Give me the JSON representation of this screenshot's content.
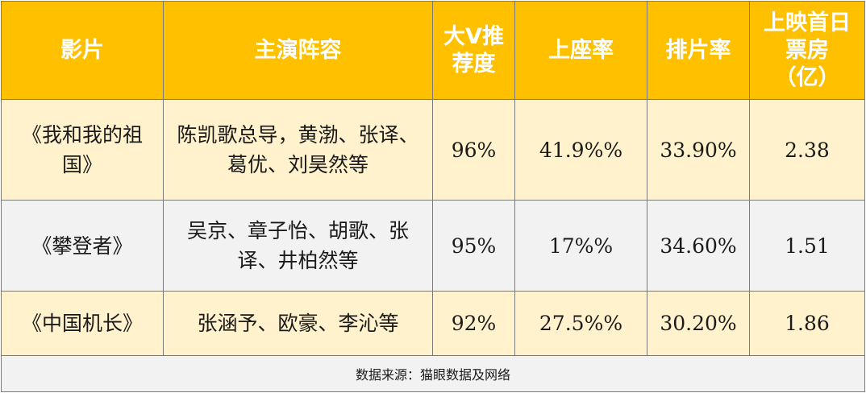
{
  "chart_data": {
    "type": "table",
    "columns": [
      "影片",
      "主演阵容",
      "大V推荐度",
      "上座率",
      "排片率",
      "上映首日票房（亿）"
    ],
    "column_display": [
      "影片",
      "主演阵容",
      "大V推\n荐度",
      "上座率",
      "排片率",
      "上映首日\n票房\n（亿）"
    ],
    "rows": [
      {
        "film": "《我和我的祖国》",
        "cast": "陈凯歌总导，黄渤、张译、葛优、刘昊然等",
        "recommend": "96%",
        "attendance": "41.9%%",
        "screening": "33.90%",
        "box_office": "2.38"
      },
      {
        "film": "《攀登者》",
        "cast": "吴京、章子怡、胡歌、张译、井柏然等",
        "recommend": "95%",
        "attendance": "17%%",
        "screening": "34.60%",
        "box_office": "1.51"
      },
      {
        "film": "《中国机长》",
        "cast": "张涵予、欧豪、李沁等",
        "recommend": "92%",
        "attendance": "27.5%%",
        "screening": "30.20%",
        "box_office": "1.86"
      }
    ],
    "source": "数据来源：猫眼数据及网络"
  },
  "colors": {
    "header_bg": "#ffc000",
    "header_text": "#ffffff",
    "row_odd_bg": "#fff2cc",
    "row_even_bg": "#f2f2f2",
    "border": "#7a7a7a"
  }
}
